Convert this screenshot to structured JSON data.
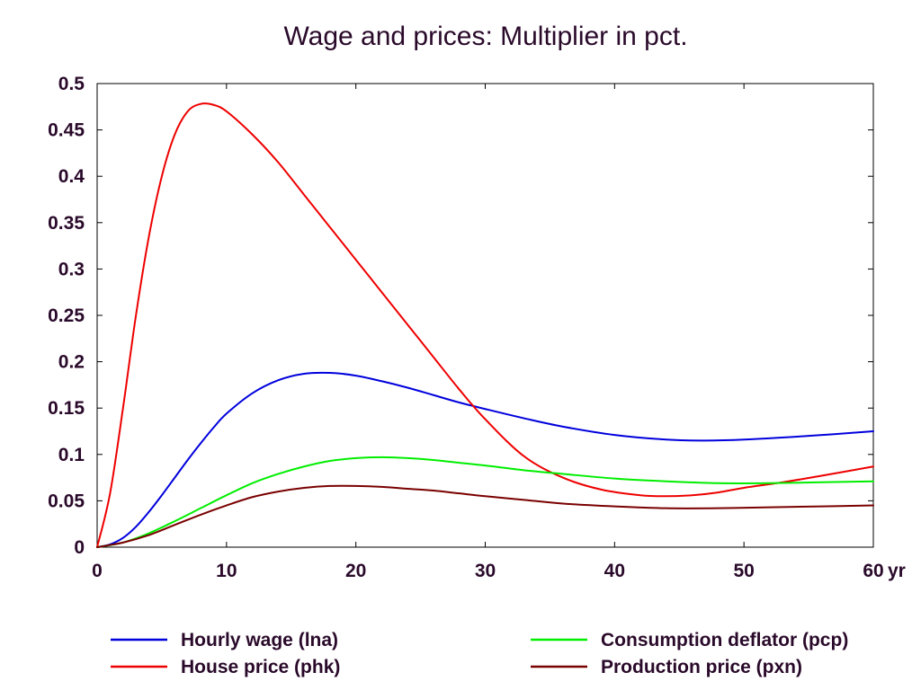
{
  "chart_data": {
    "type": "line",
    "title": "Wage and prices: Multiplier in pct.",
    "xlabel": "",
    "ylabel": "",
    "x_unit_label": "yr",
    "xlim": [
      0,
      60
    ],
    "ylim": [
      0,
      0.5
    ],
    "x_ticks": [
      0,
      10,
      20,
      30,
      40,
      50,
      60
    ],
    "x_tick_labels": [
      "0",
      "10",
      "20",
      "30",
      "40",
      "50",
      "60"
    ],
    "y_ticks": [
      0,
      0.05,
      0.1,
      0.15,
      0.2,
      0.25,
      0.3,
      0.35,
      0.4,
      0.45,
      0.5
    ],
    "y_tick_labels": [
      "0",
      "0.05",
      "0.1",
      "0.15",
      "0.2",
      "0.25",
      "0.3",
      "0.35",
      "0.4",
      "0.45",
      "0.5"
    ],
    "grid": false,
    "legend_position": "bottom",
    "series": [
      {
        "name": "Hourly wage (lna)",
        "color": "#0000dd",
        "x": [
          0,
          1,
          2,
          3,
          4,
          5,
          6,
          7,
          8,
          9,
          10,
          12,
          14,
          16,
          18,
          20,
          22,
          24,
          26,
          28,
          30,
          33,
          36,
          40,
          44,
          47,
          50,
          55,
          60
        ],
        "y": [
          0,
          0.003,
          0.01,
          0.022,
          0.038,
          0.056,
          0.075,
          0.094,
          0.112,
          0.129,
          0.144,
          0.166,
          0.18,
          0.187,
          0.188,
          0.185,
          0.179,
          0.172,
          0.164,
          0.156,
          0.149,
          0.139,
          0.13,
          0.121,
          0.116,
          0.115,
          0.116,
          0.12,
          0.125
        ]
      },
      {
        "name": "House price (phk)",
        "color": "#ee0000",
        "x": [
          0,
          1,
          2,
          3,
          4,
          5,
          6,
          7,
          8,
          9,
          10,
          12,
          14,
          16,
          18,
          20,
          22,
          24,
          26,
          28,
          30,
          33,
          36,
          39,
          42,
          44,
          46,
          48,
          50,
          53,
          56,
          60
        ],
        "y": [
          0,
          0.058,
          0.15,
          0.25,
          0.335,
          0.4,
          0.445,
          0.47,
          0.478,
          0.477,
          0.47,
          0.445,
          0.415,
          0.38,
          0.345,
          0.31,
          0.275,
          0.24,
          0.205,
          0.17,
          0.138,
          0.098,
          0.075,
          0.062,
          0.056,
          0.055,
          0.056,
          0.059,
          0.064,
          0.07,
          0.077,
          0.087
        ]
      },
      {
        "name": "Consumption deflator (pcp)",
        "color": "#00ee00",
        "x": [
          0,
          2,
          4,
          6,
          8,
          10,
          12,
          14,
          16,
          18,
          20,
          22,
          24,
          26,
          28,
          30,
          33,
          36,
          40,
          44,
          48,
          52,
          56,
          60
        ],
        "y": [
          0,
          0.005,
          0.015,
          0.028,
          0.042,
          0.056,
          0.069,
          0.079,
          0.087,
          0.093,
          0.096,
          0.097,
          0.096,
          0.094,
          0.091,
          0.088,
          0.083,
          0.079,
          0.074,
          0.071,
          0.069,
          0.069,
          0.07,
          0.071
        ]
      },
      {
        "name": "Production price (pxn)",
        "color": "#7a0000",
        "x": [
          0,
          2,
          4,
          6,
          8,
          10,
          12,
          14,
          16,
          18,
          20,
          22,
          24,
          26,
          28,
          30,
          33,
          36,
          40,
          44,
          48,
          52,
          56,
          60
        ],
        "y": [
          0,
          0.005,
          0.013,
          0.024,
          0.035,
          0.045,
          0.054,
          0.06,
          0.064,
          0.066,
          0.066,
          0.065,
          0.063,
          0.061,
          0.058,
          0.055,
          0.051,
          0.047,
          0.044,
          0.042,
          0.042,
          0.043,
          0.044,
          0.045
        ]
      }
    ]
  }
}
